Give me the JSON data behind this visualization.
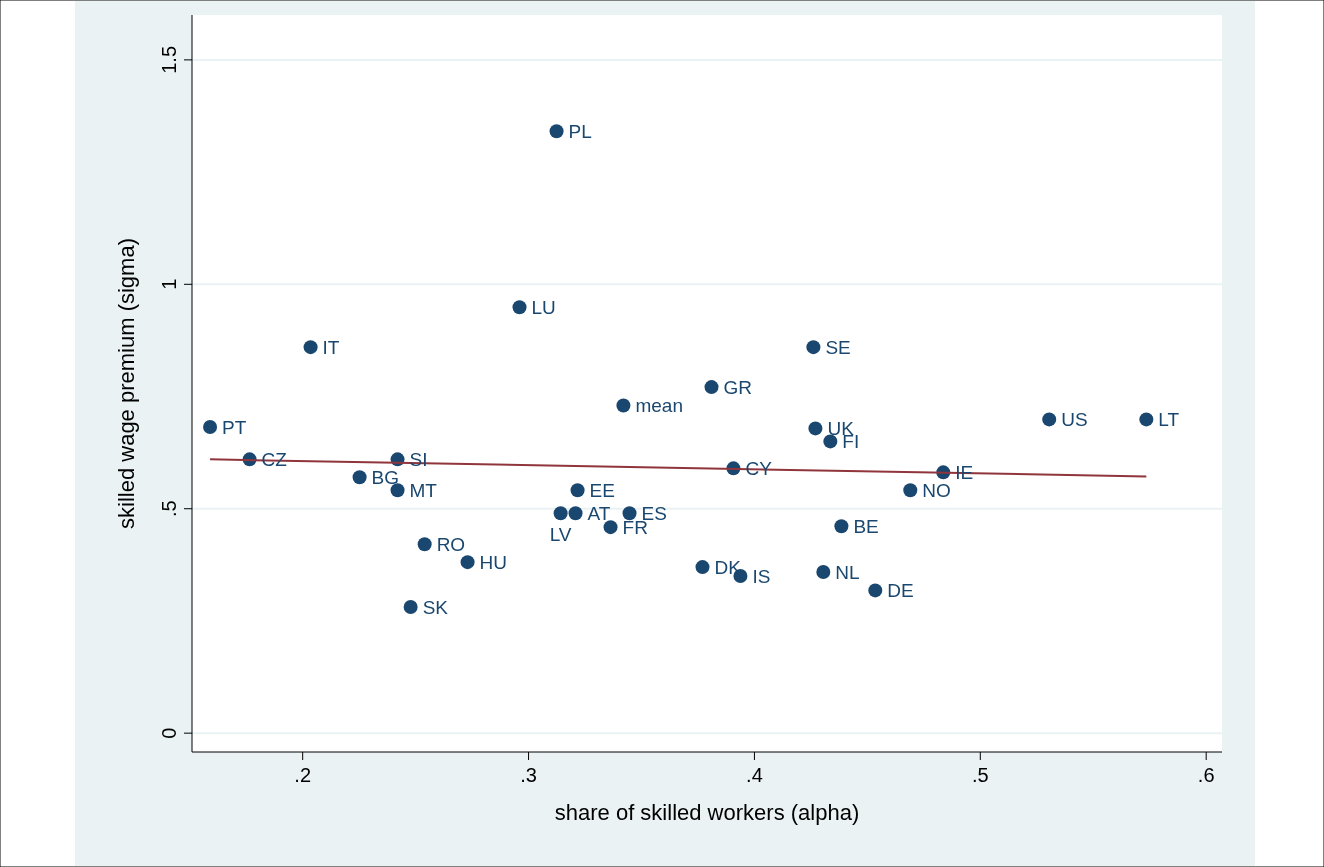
{
  "chart_data": {
    "type": "scatter",
    "xlabel": "share of skilled workers (alpha)",
    "ylabel": "skilled wage premium (sigma)",
    "xlim": [
      0.151,
      0.607
    ],
    "ylim": [
      -0.042,
      1.6
    ],
    "xticks": [
      {
        "value": 0.2,
        "label": ".2"
      },
      {
        "value": 0.3,
        "label": ".3"
      },
      {
        "value": 0.4,
        "label": ".4"
      },
      {
        "value": 0.5,
        "label": ".5"
      },
      {
        "value": 0.6,
        "label": ".6"
      }
    ],
    "yticks": [
      {
        "value": 0,
        "label": "0"
      },
      {
        "value": 0.5,
        "label": ".5"
      },
      {
        "value": 1,
        "label": "1"
      },
      {
        "value": 1.5,
        "label": "1.5"
      }
    ],
    "grid": "y",
    "marker": "circle",
    "series": [
      {
        "type": "scatter",
        "color": "#1a476f",
        "x": [
          0.3124,
          0.296,
          0.2035,
          0.4261,
          0.381,
          0.342,
          0.159,
          0.5305,
          0.5735,
          0.427,
          0.4336,
          0.1765,
          0.242,
          0.3907,
          0.4836,
          0.2252,
          0.242,
          0.3217,
          0.469,
          0.3142,
          0.3208,
          0.3447,
          0.3363,
          0.4385,
          0.254,
          0.273,
          0.377,
          0.3938,
          0.4305,
          0.4535,
          0.2478
        ],
        "values": [
          1.341,
          0.949,
          0.86,
          0.86,
          0.771,
          0.73,
          0.682,
          0.699,
          0.699,
          0.679,
          0.65,
          0.61,
          0.61,
          0.59,
          0.581,
          0.57,
          0.541,
          0.541,
          0.541,
          0.49,
          0.49,
          0.49,
          0.459,
          0.461,
          0.421,
          0.381,
          0.37,
          0.35,
          0.359,
          0.318,
          0.281
        ]
      },
      {
        "type": "line",
        "color": "#90353b",
        "x": [
          0.159,
          0.5735
        ],
        "values": [
          0.61,
          0.572
        ],
        "marker": "none"
      }
    ],
    "annotations": [
      {
        "text": "PL",
        "x": 0.3124,
        "y": 1.341
      },
      {
        "text": "LU",
        "x": 0.296,
        "y": 0.949
      },
      {
        "text": "IT",
        "x": 0.2035,
        "y": 0.86
      },
      {
        "text": "SE",
        "x": 0.4261,
        "y": 0.86
      },
      {
        "text": "GR",
        "x": 0.381,
        "y": 0.771
      },
      {
        "text": "mean",
        "x": 0.342,
        "y": 0.73
      },
      {
        "text": "PT",
        "x": 0.159,
        "y": 0.682
      },
      {
        "text": "US",
        "x": 0.5305,
        "y": 0.699
      },
      {
        "text": "LT",
        "x": 0.5735,
        "y": 0.699
      },
      {
        "text": "UK",
        "x": 0.427,
        "y": 0.679
      },
      {
        "text": "FI",
        "x": 0.4336,
        "y": 0.65
      },
      {
        "text": "CZ",
        "x": 0.1765,
        "y": 0.61
      },
      {
        "text": "SI",
        "x": 0.242,
        "y": 0.61
      },
      {
        "text": "CY",
        "x": 0.3907,
        "y": 0.59
      },
      {
        "text": "IE",
        "x": 0.4836,
        "y": 0.581
      },
      {
        "text": "BG",
        "x": 0.2252,
        "y": 0.57
      },
      {
        "text": "MT",
        "x": 0.242,
        "y": 0.541
      },
      {
        "text": "EE",
        "x": 0.3217,
        "y": 0.541
      },
      {
        "text": "NO",
        "x": 0.469,
        "y": 0.541
      },
      {
        "text": "LV",
        "x": 0.3142,
        "y": 0.49
      },
      {
        "text": "AT",
        "x": 0.3208,
        "y": 0.49
      },
      {
        "text": "ES",
        "x": 0.3447,
        "y": 0.49
      },
      {
        "text": "FR",
        "x": 0.3363,
        "y": 0.459
      },
      {
        "text": "BE",
        "x": 0.4385,
        "y": 0.461
      },
      {
        "text": "RO",
        "x": 0.254,
        "y": 0.421
      },
      {
        "text": "HU",
        "x": 0.273,
        "y": 0.381
      },
      {
        "text": "DK",
        "x": 0.377,
        "y": 0.37
      },
      {
        "text": "IS",
        "x": 0.3938,
        "y": 0.35
      },
      {
        "text": "NL",
        "x": 0.4305,
        "y": 0.359
      },
      {
        "text": "DE",
        "x": 0.4535,
        "y": 0.318
      },
      {
        "text": "SK",
        "x": 0.2478,
        "y": 0.281
      }
    ]
  }
}
